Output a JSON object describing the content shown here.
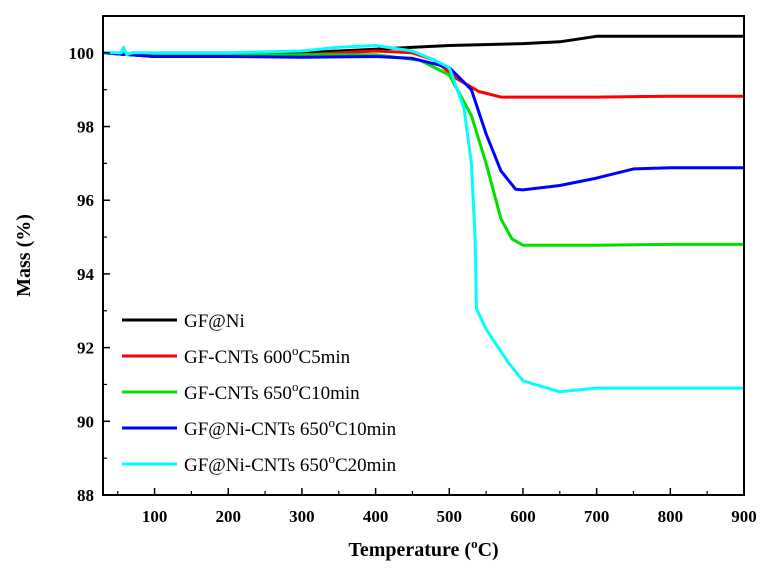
{
  "chart_data": {
    "type": "line",
    "xlabel": "Temperature (",
    "xlabel_sup": "o",
    "xlabel_tail": "C)",
    "ylabel": "Mass  (%)",
    "xlim": [
      30,
      900
    ],
    "ylim": [
      88,
      101
    ],
    "xticks": [
      100,
      200,
      300,
      400,
      500,
      600,
      700,
      800,
      900
    ],
    "yticks": [
      88,
      90,
      92,
      94,
      96,
      98,
      100
    ],
    "grid": false,
    "legend_position": "bottom-left",
    "series": [
      {
        "name": "GF@Ni",
        "label_parts": [
          "GF@Ni"
        ],
        "color": "#000000",
        "points": [
          [
            30,
            100
          ],
          [
            100,
            99.9
          ],
          [
            200,
            99.9
          ],
          [
            300,
            100
          ],
          [
            400,
            100.1
          ],
          [
            500,
            100.2
          ],
          [
            600,
            100.25
          ],
          [
            650,
            100.3
          ],
          [
            700,
            100.45
          ],
          [
            800,
            100.45
          ],
          [
            900,
            100.45
          ]
        ]
      },
      {
        "name": "GF-CNTs 600oC5min",
        "label_parts": [
          "GF-CNTs 600",
          "o",
          "C5min"
        ],
        "color": "#ff0000",
        "points": [
          [
            30,
            100
          ],
          [
            100,
            99.9
          ],
          [
            200,
            99.9
          ],
          [
            300,
            99.95
          ],
          [
            400,
            100.05
          ],
          [
            450,
            100
          ],
          [
            480,
            99.8
          ],
          [
            510,
            99.3
          ],
          [
            540,
            98.95
          ],
          [
            570,
            98.8
          ],
          [
            600,
            98.8
          ],
          [
            700,
            98.8
          ],
          [
            800,
            98.82
          ],
          [
            900,
            98.82
          ]
        ]
      },
      {
        "name": "GF-CNTs 650oC10min",
        "label_parts": [
          "GF-CNTs 650",
          "o",
          "C10min"
        ],
        "color": "#00e000",
        "points": [
          [
            30,
            100
          ],
          [
            100,
            99.95
          ],
          [
            200,
            99.95
          ],
          [
            300,
            99.95
          ],
          [
            400,
            99.95
          ],
          [
            460,
            99.8
          ],
          [
            500,
            99.4
          ],
          [
            530,
            98.3
          ],
          [
            550,
            97
          ],
          [
            570,
            95.5
          ],
          [
            585,
            94.95
          ],
          [
            600,
            94.78
          ],
          [
            700,
            94.78
          ],
          [
            800,
            94.8
          ],
          [
            900,
            94.8
          ]
        ]
      },
      {
        "name": "GF@Ni-CNTs 650oC10min",
        "label_parts": [
          "GF@Ni-CNTs 650",
          "o",
          "C10min"
        ],
        "color": "#0000ff",
        "points": [
          [
            30,
            100
          ],
          [
            100,
            99.9
          ],
          [
            200,
            99.9
          ],
          [
            300,
            99.88
          ],
          [
            400,
            99.9
          ],
          [
            450,
            99.85
          ],
          [
            500,
            99.6
          ],
          [
            530,
            99
          ],
          [
            550,
            97.8
          ],
          [
            570,
            96.8
          ],
          [
            590,
            96.3
          ],
          [
            600,
            96.28
          ],
          [
            650,
            96.4
          ],
          [
            700,
            96.6
          ],
          [
            750,
            96.85
          ],
          [
            800,
            96.88
          ],
          [
            900,
            96.88
          ]
        ]
      },
      {
        "name": "GF@Ni-CNTs 650oC20min",
        "label_parts": [
          "GF@Ni-CNTs 650",
          "o",
          "C20min"
        ],
        "color": "#00ffff",
        "points": [
          [
            30,
            100
          ],
          [
            55,
            100
          ],
          [
            58,
            100.15
          ],
          [
            62,
            99.95
          ],
          [
            70,
            100
          ],
          [
            200,
            100
          ],
          [
            300,
            100.05
          ],
          [
            350,
            100.15
          ],
          [
            400,
            100.2
          ],
          [
            450,
            100.05
          ],
          [
            480,
            99.8
          ],
          [
            500,
            99.6
          ],
          [
            520,
            98.5
          ],
          [
            530,
            97
          ],
          [
            535,
            95
          ],
          [
            537,
            93.05
          ],
          [
            550,
            92.5
          ],
          [
            580,
            91.6
          ],
          [
            600,
            91.1
          ],
          [
            650,
            90.8
          ],
          [
            700,
            90.9
          ],
          [
            800,
            90.9
          ],
          [
            900,
            90.9
          ]
        ]
      }
    ]
  }
}
